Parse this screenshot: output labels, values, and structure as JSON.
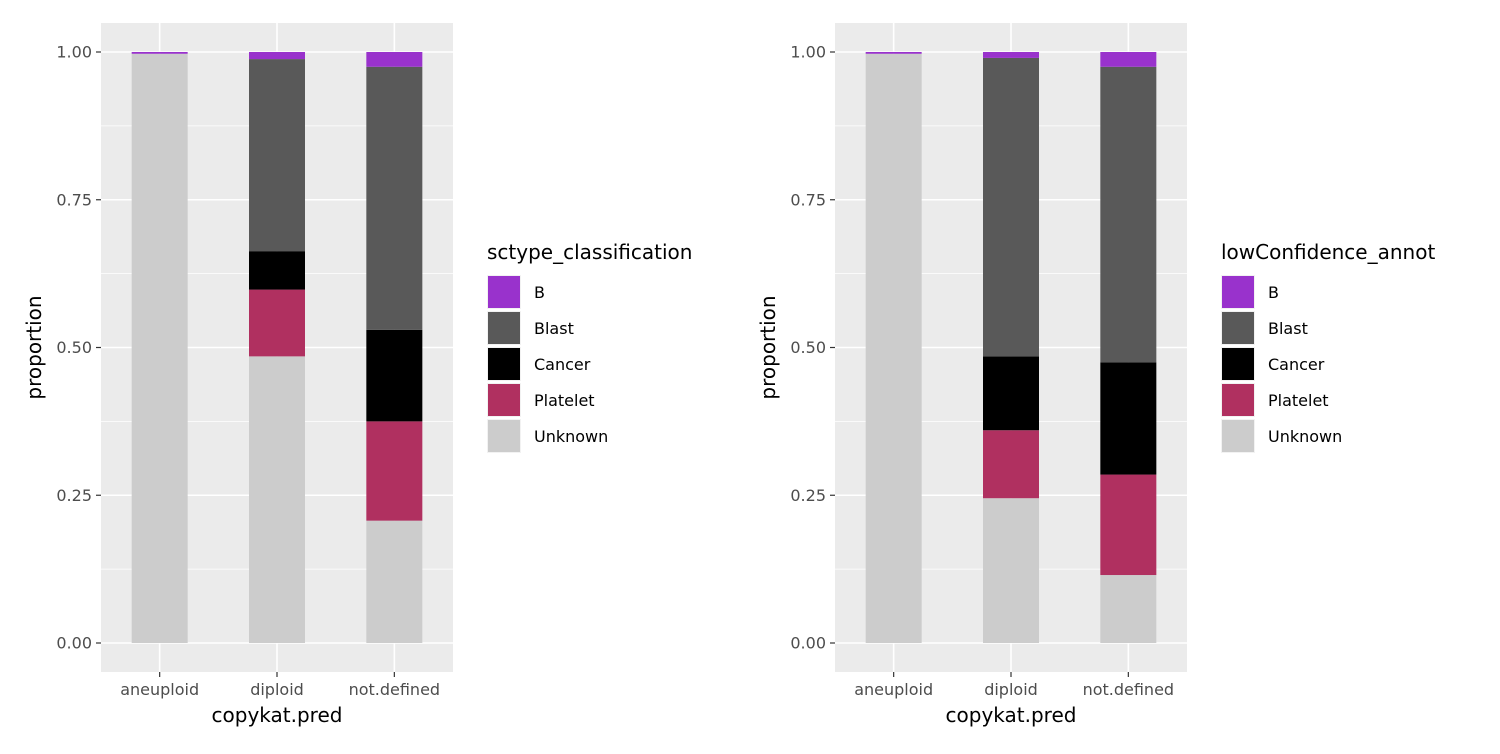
{
  "chart_data": [
    {
      "type": "bar",
      "stacked": true,
      "xlabel": "copykat.pred",
      "ylabel": "proportion",
      "ylim": [
        0,
        1
      ],
      "yticks": [
        "0.00",
        "0.25",
        "0.50",
        "0.75",
        "1.00"
      ],
      "categories": [
        "aneuploid",
        "diploid",
        "not.defined"
      ],
      "legend_title": "sctype_classification",
      "legend_position": "right",
      "grid": true,
      "series": [
        {
          "name": "B",
          "color": "#9932CC",
          "values": [
            0.003,
            0.012,
            0.025
          ]
        },
        {
          "name": "Blast",
          "color": "#595959",
          "values": [
            0.0,
            0.325,
            0.445
          ]
        },
        {
          "name": "Cancer",
          "color": "#000000",
          "values": [
            0.0,
            0.065,
            0.155
          ]
        },
        {
          "name": "Platelet",
          "color": "#B03060",
          "values": [
            0.0,
            0.113,
            0.168
          ]
        },
        {
          "name": "Unknown",
          "color": "#CCCCCC",
          "values": [
            0.997,
            0.485,
            0.207
          ]
        }
      ]
    },
    {
      "type": "bar",
      "stacked": true,
      "xlabel": "copykat.pred",
      "ylabel": "proportion",
      "ylim": [
        0,
        1
      ],
      "yticks": [
        "0.00",
        "0.25",
        "0.50",
        "0.75",
        "1.00"
      ],
      "categories": [
        "aneuploid",
        "diploid",
        "not.defined"
      ],
      "legend_title": "lowConfidence_annot",
      "legend_position": "right",
      "grid": true,
      "series": [
        {
          "name": "B",
          "color": "#9932CC",
          "values": [
            0.003,
            0.01,
            0.025
          ]
        },
        {
          "name": "Blast",
          "color": "#595959",
          "values": [
            0.0,
            0.505,
            0.5
          ]
        },
        {
          "name": "Cancer",
          "color": "#000000",
          "values": [
            0.0,
            0.125,
            0.19
          ]
        },
        {
          "name": "Platelet",
          "color": "#B03060",
          "values": [
            0.0,
            0.115,
            0.17
          ]
        },
        {
          "name": "Unknown",
          "color": "#CCCCCC",
          "values": [
            0.997,
            0.245,
            0.115
          ]
        }
      ]
    }
  ]
}
